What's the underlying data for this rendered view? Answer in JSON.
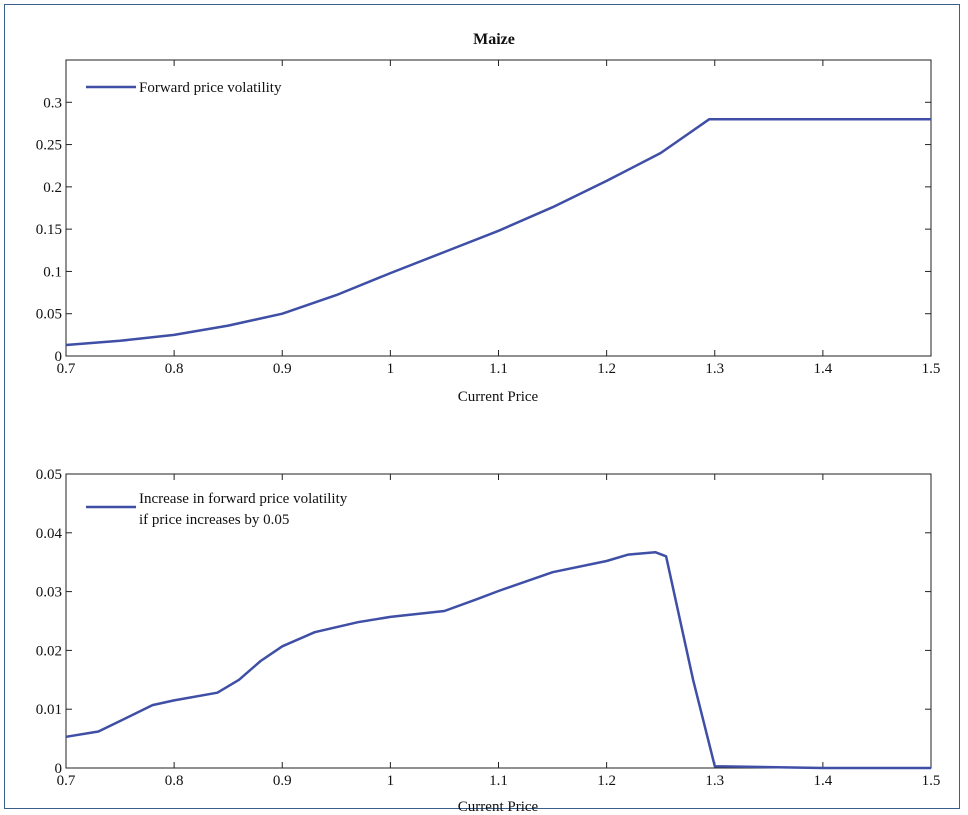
{
  "chart_data": [
    {
      "type": "line",
      "title": "Maize",
      "xlabel": "Current Price",
      "ylabel": "",
      "xlim": [
        0.7,
        1.5
      ],
      "ylim": [
        0,
        0.35
      ],
      "xticks": [
        "0.7",
        "0.8",
        "0.9",
        "1",
        "1.1",
        "1.2",
        "1.3",
        "1.4",
        "1.5"
      ],
      "yticks": [
        "0",
        "0.05",
        "0.1",
        "0.15",
        "0.2",
        "0.25",
        "0.3"
      ],
      "grid": false,
      "legend_position": "top-left",
      "series": [
        {
          "name": "Forward price volatility",
          "color": "#3f4fa6",
          "x": [
            0.7,
            0.75,
            0.8,
            0.85,
            0.9,
            0.95,
            1.0,
            1.05,
            1.1,
            1.15,
            1.2,
            1.25,
            1.295,
            1.3,
            1.4,
            1.5
          ],
          "y": [
            0.013,
            0.018,
            0.025,
            0.036,
            0.05,
            0.072,
            0.098,
            0.123,
            0.148,
            0.176,
            0.207,
            0.24,
            0.28,
            0.28,
            0.28,
            0.28
          ]
        }
      ]
    },
    {
      "type": "line",
      "title": "",
      "xlabel": "Current Price",
      "ylabel": "",
      "xlim": [
        0.7,
        1.5
      ],
      "ylim": [
        0,
        0.05
      ],
      "xticks": [
        "0.7",
        "0.8",
        "0.9",
        "1",
        "1.1",
        "1.2",
        "1.3",
        "1.4",
        "1.5"
      ],
      "yticks": [
        "0",
        "0.01",
        "0.02",
        "0.03",
        "0.04",
        "0.05"
      ],
      "grid": false,
      "legend_position": "top-left",
      "series": [
        {
          "name": "Increase in forward price volatility if price increases by 0.05",
          "name_lines": [
            "Increase in forward price volatility",
            "if price increases by 0.05"
          ],
          "color": "#3f4fa6",
          "x": [
            0.7,
            0.73,
            0.75,
            0.78,
            0.8,
            0.84,
            0.86,
            0.88,
            0.9,
            0.93,
            0.97,
            1.0,
            1.05,
            1.08,
            1.1,
            1.15,
            1.2,
            1.22,
            1.245,
            1.255,
            1.28,
            1.3,
            1.4,
            1.5
          ],
          "y": [
            0.0053,
            0.0062,
            0.008,
            0.0107,
            0.0115,
            0.0128,
            0.015,
            0.0182,
            0.0207,
            0.0231,
            0.0248,
            0.0257,
            0.0267,
            0.0287,
            0.0301,
            0.0333,
            0.0352,
            0.0363,
            0.0367,
            0.036,
            0.015,
            0.0003,
            0.0,
            0.0
          ]
        }
      ]
    }
  ]
}
